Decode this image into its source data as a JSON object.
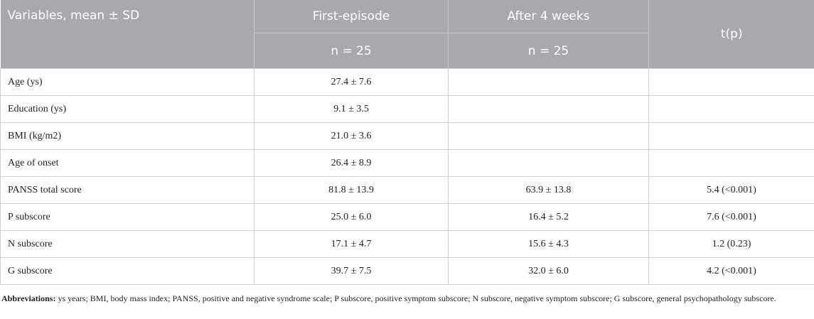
{
  "header": {
    "col1": "Variables, mean ± SD",
    "col2": "First-episode",
    "col3": "After 4 weeks",
    "col2_sub": "n = 25",
    "col3_sub": "n = 25",
    "col4": "t(p)"
  },
  "rows": [
    {
      "variable": "Age (ys)",
      "first": "27.4 ± 7.6",
      "after": "",
      "tp": ""
    },
    {
      "variable": "Education (ys)",
      "first": "9.1 ± 3.5",
      "after": "",
      "tp": ""
    },
    {
      "variable": "BMI (kg/m2)",
      "first": "21.0 ± 3.6",
      "after": "",
      "tp": ""
    },
    {
      "variable": "Age of onset",
      "first": "26.4 ± 8.9",
      "after": "",
      "tp": ""
    },
    {
      "variable": "PANSS total score",
      "first": "81.8 ± 13.9",
      "after": "63.9 ± 13.8",
      "tp": "5.4 (<0.001)"
    },
    {
      "variable": "P subscore",
      "first": "25.0 ± 6.0",
      "after": "16.4 ± 5.2",
      "tp": "7.6 (<0.001)"
    },
    {
      "variable": "N subscore",
      "first": "17.1 ± 4.7",
      "after": "15.6 ± 4.3",
      "tp": "1.2 (0.23)"
    },
    {
      "variable": "G subscore",
      "first": "39.7 ± 7.5",
      "after": "32.0 ± 6.0",
      "tp": "4.2 (<0.001)"
    }
  ],
  "footnote": {
    "label": "Abbreviations:",
    "text": " ys years; BMI, body mass index; PANSS, positive and negative syndrome scale; P subscore, positive symptom subscore; N subscore, negative symptom subscore; G subscore, general psychopathology subscore."
  }
}
